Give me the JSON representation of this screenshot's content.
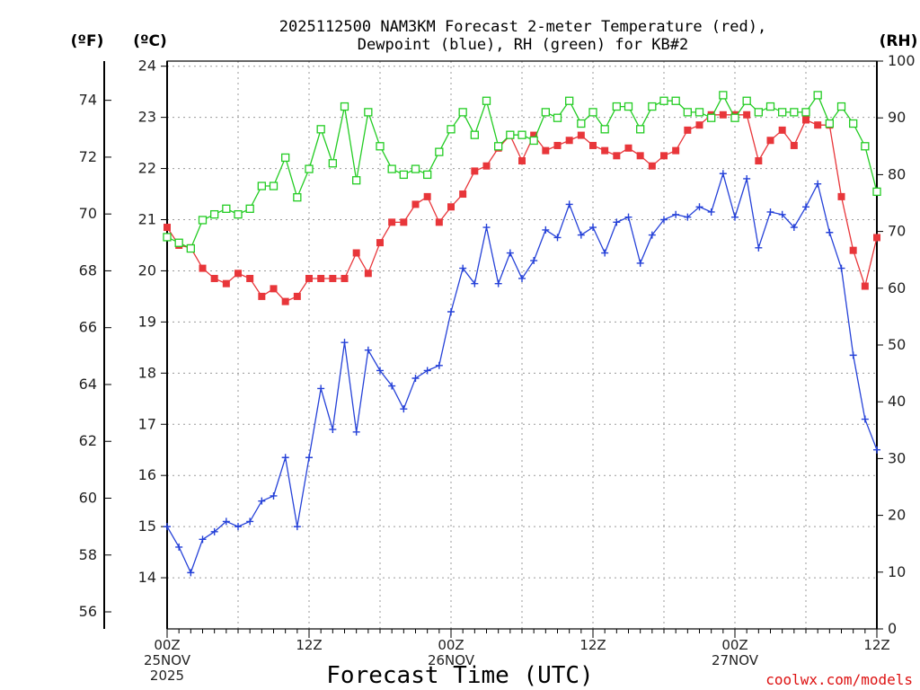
{
  "chart_data": {
    "type": "line",
    "title_line1": "2025112500 NAM3KM Forecast 2-meter Temperature (red),",
    "title_line2": "Dewpoint (blue), RH (green) for KB#2",
    "xlabel": "Forecast Time (UTC)",
    "credit": "coolwx.com/models",
    "unit_f": "(ºF)",
    "unit_c": "(ºC)",
    "unit_rh": "(RH)",
    "x_hours_range": [
      0,
      60
    ],
    "x_ticks": [
      {
        "hour": 0,
        "line1": "00Z",
        "line2": "25NOV",
        "line3": "2025"
      },
      {
        "hour": 12,
        "line1": "12Z",
        "line2": "",
        "line3": ""
      },
      {
        "hour": 24,
        "line1": "00Z",
        "line2": "26NOV",
        "line3": ""
      },
      {
        "hour": 36,
        "line1": "12Z",
        "line2": "",
        "line3": ""
      },
      {
        "hour": 48,
        "line1": "00Z",
        "line2": "27NOV",
        "line3": ""
      },
      {
        "hour": 60,
        "line1": "12Z",
        "line2": "",
        "line3": ""
      }
    ],
    "ylim_c": [
      13.0,
      24.1
    ],
    "ylim_rh": [
      0,
      100
    ],
    "yticks_c": [
      14,
      15,
      16,
      17,
      18,
      19,
      20,
      21,
      22,
      23,
      24
    ],
    "yticks_f": [
      56,
      58,
      60,
      62,
      64,
      66,
      68,
      70,
      72,
      74
    ],
    "yticks_rh": [
      0,
      10,
      20,
      30,
      40,
      50,
      60,
      70,
      80,
      90,
      100
    ],
    "grid": true,
    "colors": {
      "temperature": "#e8363a",
      "dewpoint": "#2541d8",
      "rh": "#23cc23"
    },
    "series": [
      {
        "key": "temperature",
        "axis": "c",
        "marker": "filled-square",
        "values": [
          20.85,
          20.5,
          20.45,
          20.05,
          19.85,
          19.75,
          19.95,
          19.85,
          19.5,
          19.65,
          19.4,
          19.5,
          19.85,
          19.85,
          19.85,
          19.85,
          20.35,
          19.95,
          20.55,
          20.95,
          20.95,
          21.3,
          21.45,
          20.95,
          21.25,
          21.5,
          21.95,
          22.05,
          22.4,
          22.65,
          22.15,
          22.65,
          22.35,
          22.45,
          22.55,
          22.65,
          22.45,
          22.35,
          22.25,
          22.4,
          22.25,
          22.05,
          22.25,
          22.35,
          22.75,
          22.85,
          23.05,
          23.05,
          23.05,
          23.05,
          22.15,
          22.55,
          22.75,
          22.45,
          22.95,
          22.85,
          22.85,
          21.45,
          20.4,
          19.7,
          20.65
        ]
      },
      {
        "key": "dewpoint",
        "axis": "c",
        "marker": "plus",
        "values": [
          15.0,
          14.6,
          14.1,
          14.75,
          14.9,
          15.1,
          15.0,
          15.1,
          15.5,
          15.6,
          16.35,
          15.0,
          16.35,
          17.7,
          16.9,
          18.6,
          16.85,
          18.45,
          18.05,
          17.75,
          17.3,
          17.9,
          18.05,
          18.15,
          19.2,
          20.05,
          19.75,
          20.85,
          19.75,
          20.35,
          19.85,
          20.2,
          20.8,
          20.65,
          21.3,
          20.7,
          20.85,
          20.35,
          20.95,
          21.05,
          20.15,
          20.7,
          21.0,
          21.1,
          21.05,
          21.25,
          21.15,
          21.9,
          21.05,
          21.8,
          20.45,
          21.15,
          21.1,
          20.85,
          21.25,
          21.7,
          20.75,
          20.05,
          18.35,
          17.1,
          16.5
        ]
      },
      {
        "key": "rh",
        "axis": "rh",
        "marker": "open-square",
        "values": [
          69,
          68,
          67,
          72,
          73,
          74,
          73,
          74,
          78,
          78,
          83,
          76,
          81,
          88,
          82,
          92,
          79,
          91,
          85,
          81,
          80,
          81,
          80,
          84,
          88,
          91,
          87,
          93,
          85,
          87,
          87,
          86,
          91,
          90,
          93,
          89,
          91,
          88,
          92,
          92,
          88,
          92,
          93,
          93,
          91,
          91,
          90,
          94,
          90,
          93,
          91,
          92,
          91,
          91,
          91,
          94,
          89,
          92,
          89,
          85,
          77
        ]
      }
    ]
  }
}
